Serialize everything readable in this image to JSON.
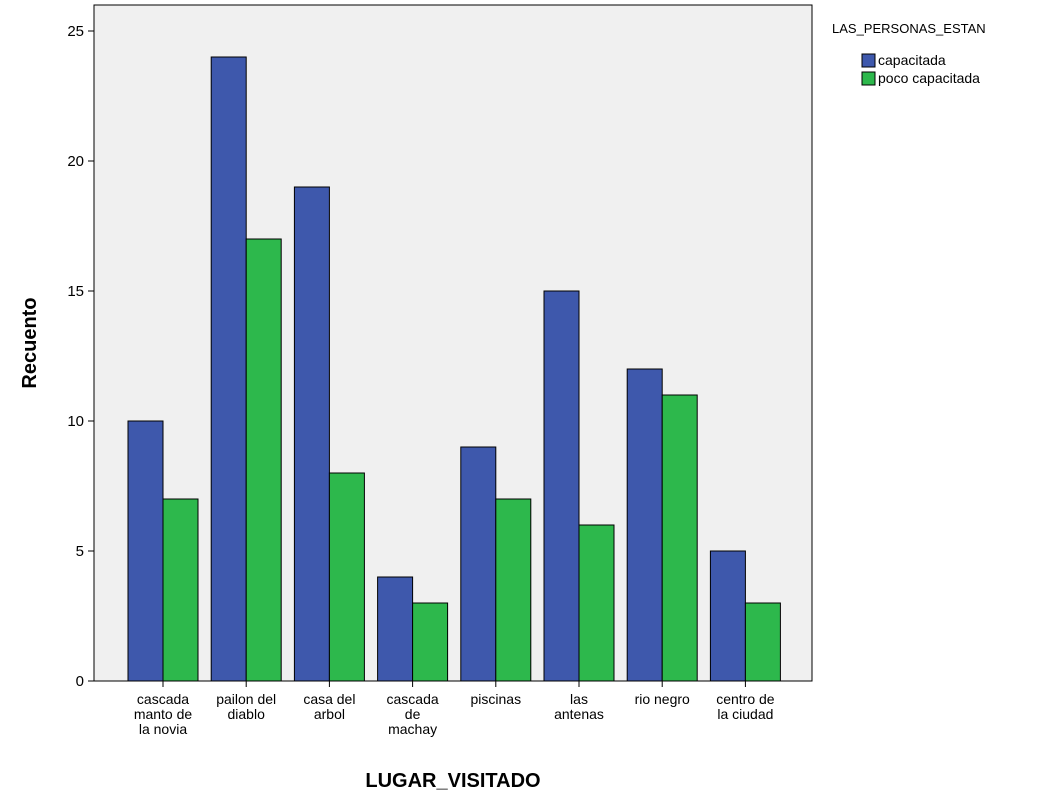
{
  "chart_data": {
    "type": "bar",
    "xlabel": "LUGAR_VISITADO",
    "ylabel": "Recuento",
    "ylim": [
      0,
      26
    ],
    "yticks": [
      0,
      5,
      10,
      15,
      20,
      25
    ],
    "grid": false,
    "legend_position": "top-right",
    "legend_title": "LAS_PERSONAS_ESTAN",
    "categories": [
      [
        "cascada",
        "manto de",
        "la novia"
      ],
      [
        "pailon del",
        "diablo"
      ],
      [
        "casa del",
        "arbol"
      ],
      [
        "cascada",
        "de",
        "machay"
      ],
      [
        "piscinas"
      ],
      [
        "las",
        "antenas"
      ],
      [
        "rio negro"
      ],
      [
        "centro de",
        "la ciudad"
      ]
    ],
    "series": [
      {
        "name": "capacitada",
        "color": "#3e58ac",
        "values": [
          10,
          24,
          19,
          4,
          9,
          15,
          12,
          5
        ]
      },
      {
        "name": "poco capacitada",
        "color": "#2db84c",
        "values": [
          7,
          17,
          8,
          3,
          7,
          6,
          11,
          3
        ]
      }
    ],
    "plot_background": "#f0f0f0"
  }
}
